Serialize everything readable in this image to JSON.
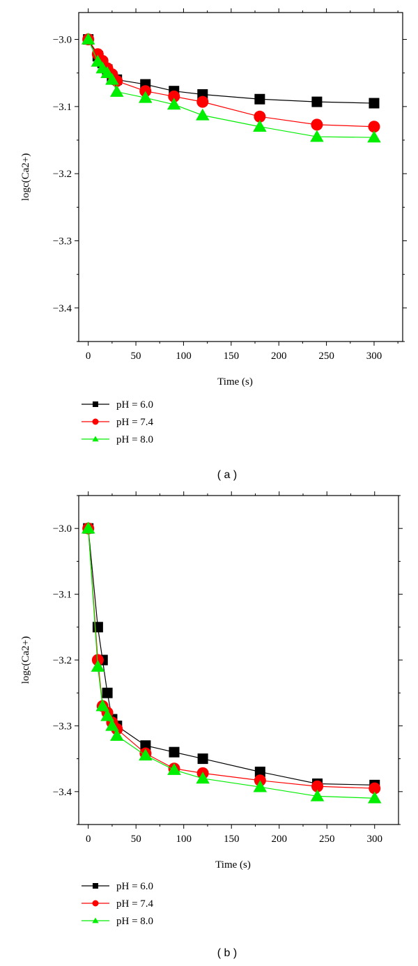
{
  "chart_data": [
    {
      "type": "line",
      "panel_label": "( a )",
      "xlabel": "Time (s)",
      "ylabel": "logc(Ca2+)",
      "xlim": [
        -10,
        330
      ],
      "ylim": [
        -3.45,
        -2.96
      ],
      "x_ticks": [
        0,
        50,
        100,
        150,
        200,
        250,
        300
      ],
      "x_tick_labels": [
        "0",
        "50",
        "100",
        "150",
        "200",
        "250",
        "300"
      ],
      "y_ticks": [
        -3.0,
        -3.1,
        -3.2,
        -3.3,
        -3.4
      ],
      "y_tick_labels": [
        "−3.0",
        "−3.1",
        "−3.2",
        "−3.3",
        "−3.4"
      ],
      "legend_position": "below",
      "series": [
        {
          "name": "pH = 6.0",
          "color": "#000000",
          "marker": "square",
          "x": [
            0,
            10,
            15,
            20,
            25,
            30,
            60,
            90,
            120,
            180,
            240,
            300
          ],
          "y": [
            -3.0,
            -3.025,
            -3.035,
            -3.045,
            -3.055,
            -3.06,
            -3.067,
            -3.077,
            -3.082,
            -3.089,
            -3.093,
            -3.095
          ]
        },
        {
          "name": "pH = 7.4",
          "color": "#ff0000",
          "marker": "circle",
          "x": [
            0,
            10,
            15,
            20,
            25,
            30,
            60,
            90,
            120,
            180,
            240,
            300
          ],
          "y": [
            -3.0,
            -3.022,
            -3.032,
            -3.043,
            -3.052,
            -3.062,
            -3.077,
            -3.085,
            -3.093,
            -3.115,
            -3.127,
            -3.13
          ]
        },
        {
          "name": "pH = 8.0",
          "color": "#00ee00",
          "marker": "triangle",
          "x": [
            0,
            10,
            15,
            20,
            25,
            30,
            60,
            90,
            120,
            180,
            240,
            300
          ],
          "y": [
            -3.0,
            -3.033,
            -3.043,
            -3.05,
            -3.06,
            -3.078,
            -3.087,
            -3.097,
            -3.113,
            -3.13,
            -3.145,
            -3.146
          ]
        }
      ]
    },
    {
      "type": "line",
      "panel_label": "( b )",
      "xlabel": "Time (s)",
      "ylabel": "logc(Ca2+)",
      "xlim": [
        -10,
        325
      ],
      "ylim": [
        -3.45,
        -2.95
      ],
      "x_ticks": [
        0,
        50,
        100,
        150,
        200,
        250,
        300
      ],
      "x_tick_labels": [
        "0",
        "50",
        "100",
        "150",
        "200",
        "250",
        "300"
      ],
      "y_ticks": [
        -3.0,
        -3.1,
        -3.2,
        -3.3,
        -3.4
      ],
      "y_tick_labels": [
        "−3.0",
        "−3.1",
        "−3.2",
        "−3.3",
        "−3.4"
      ],
      "legend_position": "below",
      "series": [
        {
          "name": "pH = 6.0",
          "color": "#000000",
          "marker": "square",
          "x": [
            0,
            10,
            15,
            20,
            25,
            30,
            60,
            90,
            120,
            180,
            240,
            300
          ],
          "y": [
            -3.0,
            -3.15,
            -3.2,
            -3.25,
            -3.29,
            -3.3,
            -3.33,
            -3.34,
            -3.35,
            -3.37,
            -3.388,
            -3.39
          ]
        },
        {
          "name": "pH = 7.4",
          "color": "#ff0000",
          "marker": "circle",
          "x": [
            0,
            10,
            15,
            20,
            25,
            30,
            60,
            90,
            120,
            180,
            240,
            300
          ],
          "y": [
            -3.0,
            -3.2,
            -3.27,
            -3.28,
            -3.295,
            -3.305,
            -3.342,
            -3.365,
            -3.372,
            -3.383,
            -3.392,
            -3.395
          ]
        },
        {
          "name": "pH = 8.0",
          "color": "#00ee00",
          "marker": "triangle",
          "x": [
            0,
            10,
            15,
            20,
            25,
            30,
            60,
            90,
            120,
            180,
            240,
            300
          ],
          "y": [
            -3.0,
            -3.21,
            -3.27,
            -3.285,
            -3.3,
            -3.315,
            -3.345,
            -3.367,
            -3.38,
            -3.393,
            -3.407,
            -3.41
          ]
        }
      ]
    }
  ]
}
